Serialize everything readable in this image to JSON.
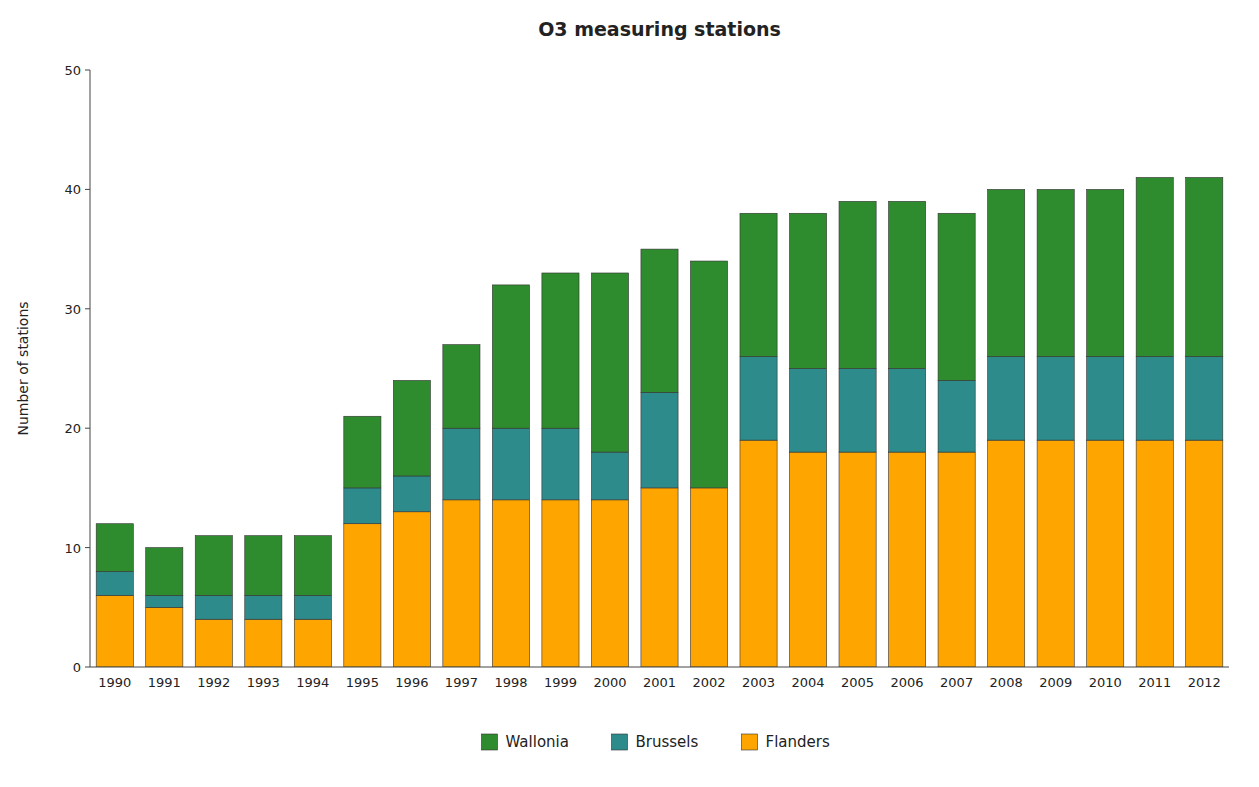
{
  "chart_data": {
    "type": "bar",
    "stacked": true,
    "title": "O3 measuring stations",
    "ylabel": "Number of stations",
    "categories": [
      "1990",
      "1991",
      "1992",
      "1993",
      "1994",
      "1995",
      "1996",
      "1997",
      "1998",
      "1999",
      "2000",
      "2001",
      "2002",
      "2003",
      "2004",
      "2005",
      "2006",
      "2007",
      "2008",
      "2009",
      "2010",
      "2011",
      "2012"
    ],
    "series": [
      {
        "name": "Flanders",
        "color": "#ffa500",
        "values": [
          6,
          5,
          4,
          4,
          4,
          12,
          13,
          14,
          14,
          14,
          14,
          15,
          15,
          19,
          18,
          18,
          18,
          18,
          19,
          19,
          19,
          19,
          19
        ]
      },
      {
        "name": "Brussels",
        "color": "#2e8b8b",
        "values": [
          2,
          1,
          2,
          2,
          2,
          3,
          3,
          6,
          6,
          6,
          4,
          8,
          0,
          7,
          7,
          7,
          7,
          6,
          7,
          7,
          7,
          7,
          7
        ]
      },
      {
        "name": "Wallonia",
        "color": "#2e8b2e",
        "values": [
          4,
          4,
          5,
          5,
          5,
          6,
          8,
          7,
          12,
          13,
          15,
          12,
          19,
          12,
          13,
          14,
          14,
          14,
          14,
          14,
          14,
          15,
          15
        ]
      }
    ],
    "ylim": [
      0,
      50
    ],
    "yticks": [
      0,
      10,
      20,
      30,
      40,
      50
    ],
    "grid": false,
    "legend": "bottom"
  }
}
